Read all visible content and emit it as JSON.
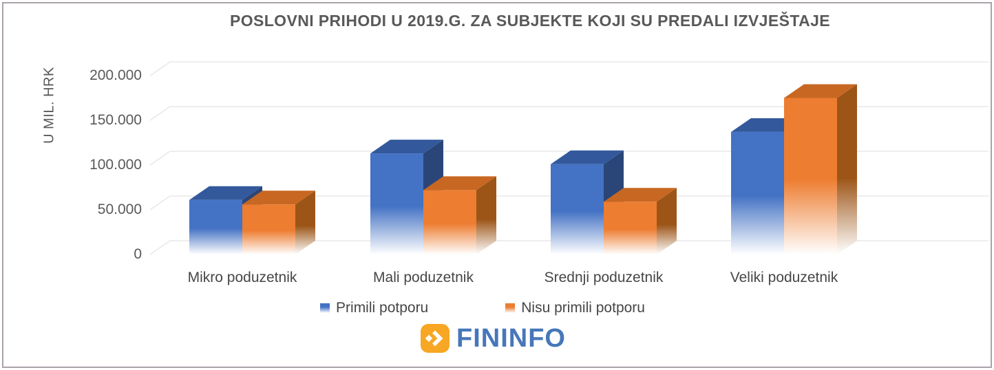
{
  "chart_data": {
    "type": "bar",
    "style": "3d-clustered-column",
    "title": "POSLOVNI PRIHODI U 2019.G. ZA SUBJEKTE KOJI SU PREDALI IZVJEŠTAJE",
    "ylabel": "U MIL. HRK",
    "unit": "mil. HRK",
    "ylim": [
      0,
      200000
    ],
    "ytick_interval": 50000,
    "ytick_labels": [
      "200.000",
      "150.000",
      "100.000",
      "50.000",
      "0"
    ],
    "grid": true,
    "legend_position": "bottom",
    "categories": [
      "Mikro poduzetnik",
      "Mali poduzetnik",
      "Srednji poduzetnik",
      "Veliki poduzetnik"
    ],
    "series": [
      {
        "name": "Primili potporu",
        "color": "#4472C4",
        "values": [
          61000,
          113000,
          101000,
          137000
        ]
      },
      {
        "name": "Nisu primili potporu",
        "color": "#ED7D31",
        "values": [
          56000,
          72000,
          59000,
          175000
        ]
      }
    ]
  },
  "palette": {
    "blue_front": "#4472C4",
    "blue_top": "#33599C",
    "blue_side": "#2A4678",
    "orange_front": "#ED7D31",
    "orange_top": "#C76722",
    "orange_side": "#9C5517",
    "gridline": "#E8E8E8",
    "title_text": "#595959",
    "label_text": "#464646",
    "frame_border": "#A9A3A9",
    "background": "#FFFFFF"
  },
  "logo": {
    "brand": "FININFO",
    "icon": "double-chevron-right-icon",
    "icon_bg": "#F7A723",
    "icon_glyph_color": "#FFFFFF",
    "text_color": "#4677B9"
  }
}
